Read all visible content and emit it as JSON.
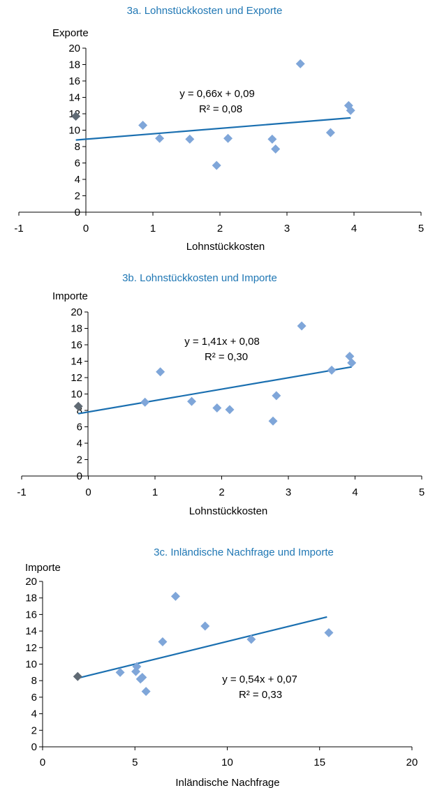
{
  "colors": {
    "title": "#1f77b4",
    "point": "#7fa6d9",
    "highlight_point": "#606a74",
    "trend": "#1a6fb0",
    "axis": "#000000"
  },
  "chart_data": [
    {
      "type": "scatter",
      "title": "3a. Lohnstückkosten und Exporte",
      "xlabel": "Lohnstückkosten",
      "ylabel": "Exporte",
      "xlim": [
        -1,
        5
      ],
      "ylim": [
        0,
        20
      ],
      "xticks": [
        -1,
        0,
        1,
        2,
        3,
        4,
        5
      ],
      "yticks": [
        0,
        2,
        4,
        6,
        8,
        10,
        12,
        14,
        16,
        18,
        20
      ],
      "equation": "y = 0,66x + 0,09",
      "r2": "R² = 0,08",
      "trendline": {
        "x": [
          -0.15,
          3.95
        ],
        "y": [
          8.8,
          11.5
        ]
      },
      "points": [
        {
          "x": 0.85,
          "y": 10.6
        },
        {
          "x": 1.1,
          "y": 9.0
        },
        {
          "x": 1.55,
          "y": 8.9
        },
        {
          "x": 1.95,
          "y": 5.7
        },
        {
          "x": 2.12,
          "y": 9.0
        },
        {
          "x": 2.78,
          "y": 8.9
        },
        {
          "x": 2.83,
          "y": 7.7
        },
        {
          "x": 3.2,
          "y": 18.1
        },
        {
          "x": 3.65,
          "y": 9.7
        },
        {
          "x": 3.92,
          "y": 13.0
        },
        {
          "x": 3.95,
          "y": 12.4
        }
      ],
      "highlight_points": [
        {
          "x": -0.15,
          "y": 11.7
        }
      ]
    },
    {
      "type": "scatter",
      "title": "3b. Lohnstückkosten und Importe",
      "xlabel": "Lohnstückkosten",
      "ylabel": "Importe",
      "xlim": [
        -1,
        5
      ],
      "ylim": [
        0,
        20
      ],
      "xticks": [
        -1,
        0,
        1,
        2,
        3,
        4,
        5
      ],
      "yticks": [
        0,
        2,
        4,
        6,
        8,
        10,
        12,
        14,
        16,
        18,
        20
      ],
      "equation": "y = 1,41x + 0,08",
      "r2": "R² = 0,30",
      "trendline": {
        "x": [
          -0.15,
          3.95
        ],
        "y": [
          7.6,
          13.3
        ]
      },
      "points": [
        {
          "x": 0.85,
          "y": 9.0
        },
        {
          "x": 1.08,
          "y": 12.7
        },
        {
          "x": 1.55,
          "y": 9.1
        },
        {
          "x": 1.93,
          "y": 8.3
        },
        {
          "x": 2.12,
          "y": 8.1
        },
        {
          "x": 2.77,
          "y": 6.7
        },
        {
          "x": 2.82,
          "y": 9.8
        },
        {
          "x": 3.2,
          "y": 18.3
        },
        {
          "x": 3.65,
          "y": 12.9
        },
        {
          "x": 3.92,
          "y": 14.6
        },
        {
          "x": 3.95,
          "y": 13.8
        }
      ],
      "highlight_points": [
        {
          "x": -0.15,
          "y": 8.5
        }
      ]
    },
    {
      "type": "scatter",
      "title": "3c. Inländische Nachfrage und Importe",
      "xlabel": "Inländische Nachfrage",
      "ylabel": "Importe",
      "xlim": [
        0,
        20
      ],
      "ylim": [
        0,
        20
      ],
      "xticks": [
        0,
        5,
        10,
        15,
        20
      ],
      "yticks": [
        0,
        2,
        4,
        6,
        8,
        10,
        12,
        14,
        16,
        18,
        20
      ],
      "equation": "y = 0,54x + 0,07",
      "r2": "R² = 0,33",
      "trendline": {
        "x": [
          1.9,
          15.4
        ],
        "y": [
          8.3,
          15.7
        ]
      },
      "points": [
        {
          "x": 4.2,
          "y": 9.0
        },
        {
          "x": 5.1,
          "y": 9.7
        },
        {
          "x": 5.05,
          "y": 9.1
        },
        {
          "x": 5.3,
          "y": 8.2
        },
        {
          "x": 5.4,
          "y": 8.4
        },
        {
          "x": 5.6,
          "y": 6.7
        },
        {
          "x": 6.5,
          "y": 12.7
        },
        {
          "x": 7.2,
          "y": 18.2
        },
        {
          "x": 8.8,
          "y": 14.6
        },
        {
          "x": 11.3,
          "y": 13.0
        },
        {
          "x": 15.5,
          "y": 13.8
        }
      ],
      "highlight_points": [
        {
          "x": 1.9,
          "y": 8.5
        }
      ]
    }
  ]
}
